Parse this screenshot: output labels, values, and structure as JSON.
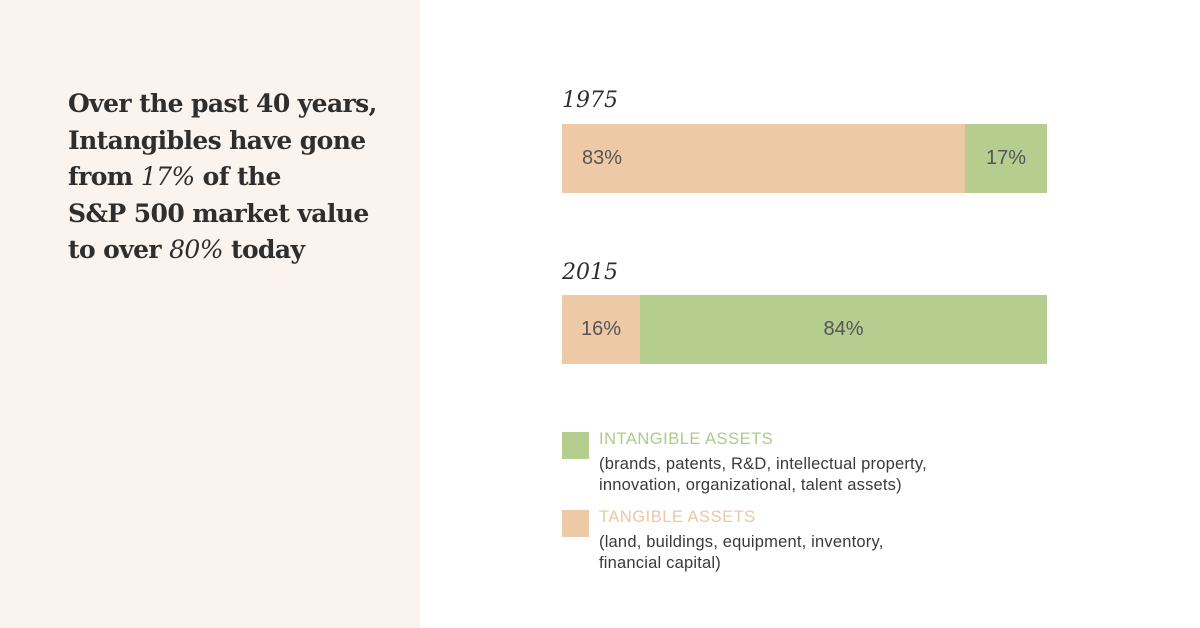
{
  "headline": {
    "line1": "Over the past 40 years,",
    "line2": "Intangibles have gone",
    "line3_pre": "from ",
    "line3_em": "17%",
    "line3_post": " of the",
    "line4": "S&P 500 market value",
    "line5_pre": "to over ",
    "line5_em": "80%",
    "line5_post": " today"
  },
  "colors": {
    "tangible": "#edc9a6",
    "intangible": "#b5cd8f",
    "tangible_text": "#ecc7a2",
    "intangible_text": "#aecb86",
    "panel_bg": "#faf3ee"
  },
  "chart_data": {
    "type": "bar",
    "orientation": "horizontal",
    "stacked": true,
    "percent": true,
    "categories": [
      "1975",
      "2015"
    ],
    "series": [
      {
        "name": "TANGIBLE ASSETS",
        "values": [
          83,
          16
        ],
        "labels": [
          "83%",
          "16%"
        ]
      },
      {
        "name": "INTANGIBLE ASSETS",
        "values": [
          17,
          84
        ],
        "labels": [
          "17%",
          "84%"
        ]
      }
    ],
    "xlim": [
      0,
      100
    ],
    "grid": false,
    "legend_position": "bottom"
  },
  "legend": [
    {
      "key": "intangible",
      "title": "INTANGIBLE ASSETS",
      "desc1": "(brands, patents, R&D, intellectual property,",
      "desc2": "innovation, organizational, talent assets)"
    },
    {
      "key": "tangible",
      "title": "TANGIBLE ASSETS",
      "desc1": "(land, buildings, equipment, inventory,",
      "desc2": "financial capital)"
    }
  ]
}
